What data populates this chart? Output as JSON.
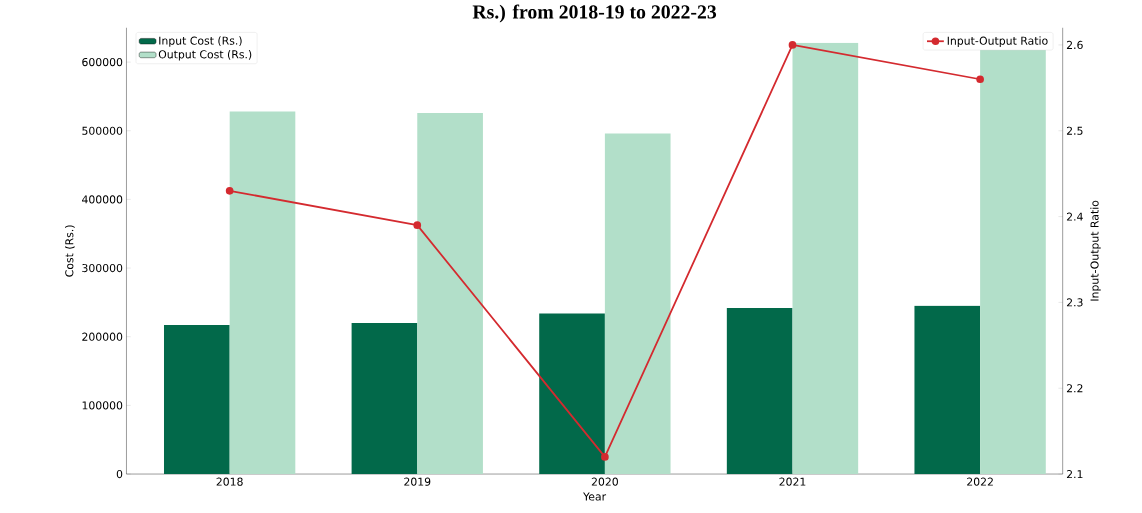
{
  "chart_data": {
    "type": "bar",
    "title": "Rs.) from 2018-19 to 2022-23",
    "xlabel": "Year",
    "ylabel": "Cost (Rs.)",
    "y2label": "Input-Output Ratio",
    "categories": [
      "2018",
      "2019",
      "2020",
      "2021",
      "2022"
    ],
    "series": [
      {
        "name": "Input Cost (Rs.)",
        "color": "#02694a",
        "values": [
          217000,
          220000,
          234000,
          242000,
          245000
        ]
      },
      {
        "name": "Output Cost (Rs.)",
        "color": "#b2dfc9",
        "values": [
          528000,
          526000,
          496000,
          628000,
          620000
        ]
      },
      {
        "name": "Input-Output Ratio",
        "type": "line",
        "axis": "y2",
        "color": "#d42a2f",
        "values": [
          2.43,
          2.39,
          2.12,
          2.6,
          2.56
        ]
      }
    ],
    "ylim": [
      0,
      650000
    ],
    "yticks": [
      0,
      100000,
      200000,
      300000,
      400000,
      500000,
      600000
    ],
    "y2lim": [
      2.1,
      2.62
    ],
    "y2ticks": [
      2.1,
      2.2,
      2.3,
      2.4,
      2.5,
      2.6
    ],
    "grid": false,
    "legend": "top left",
    "marker": "circle",
    "line_style": "solid"
  }
}
